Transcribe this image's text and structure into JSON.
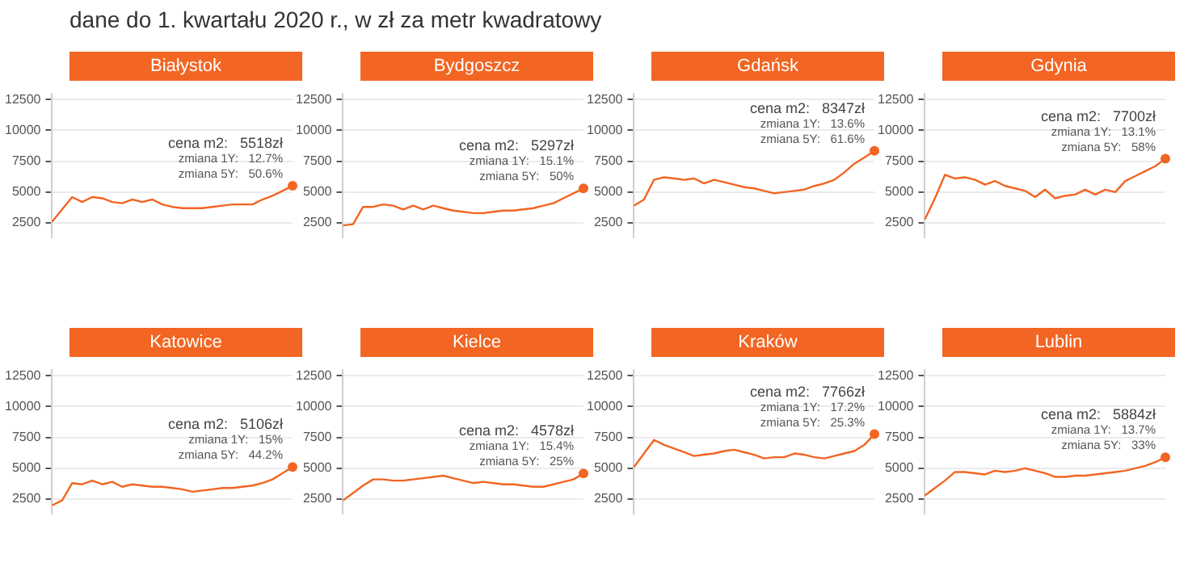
{
  "chart_data": [
    {
      "type": "line",
      "title": "Białystok",
      "subtitle": "dane do 1. kwartału 2020 r., w zł za metr kwadratowy",
      "categories": [
        null,
        null,
        null,
        null,
        null,
        null,
        null,
        null,
        null,
        null,
        null,
        null,
        null,
        null,
        null,
        null,
        null,
        null,
        null,
        null,
        null,
        null,
        null,
        null,
        null
      ],
      "ylim": [
        1300,
        13000
      ],
      "yticks": [
        2500,
        5000,
        7500,
        10000,
        12500
      ],
      "grid": "y",
      "series": [
        {
          "type": "line",
          "color": "#f26522",
          "values": [
            2600,
            3600,
            4600,
            4200,
            4600,
            4500,
            4200,
            4100,
            4400,
            4200,
            4400,
            4000,
            3800,
            3700,
            3700,
            3700,
            3800,
            3900,
            4000,
            4000,
            4000,
            4400,
            4700,
            5100,
            5518
          ]
        }
      ],
      "annotations": [
        "cena m2:   5518zł",
        "zmiana 1Y:   12.7%",
        "zmiana 5Y:   50.6%"
      ]
    },
    {
      "type": "line",
      "title": "Bydgoszcz",
      "categories": [
        null,
        null,
        null,
        null,
        null,
        null,
        null,
        null,
        null,
        null,
        null,
        null,
        null,
        null,
        null,
        null,
        null,
        null,
        null,
        null,
        null,
        null,
        null,
        null,
        null
      ],
      "ylim": [
        1300,
        13000
      ],
      "yticks": [
        2500,
        5000,
        7500,
        10000,
        12500
      ],
      "grid": "y",
      "series": [
        {
          "type": "line",
          "color": "#f26522",
          "values": [
            2300,
            2400,
            3800,
            3800,
            4000,
            3900,
            3600,
            3900,
            3600,
            3900,
            3700,
            3500,
            3400,
            3300,
            3300,
            3400,
            3500,
            3500,
            3600,
            3700,
            3900,
            4100,
            4500,
            4900,
            5297
          ]
        }
      ],
      "annotations": [
        "cena m2:   5297zł",
        "zmiana 1Y:   15.1%",
        "zmiana 5Y:   50%"
      ]
    },
    {
      "type": "line",
      "title": "Gdańsk",
      "categories": [
        null,
        null,
        null,
        null,
        null,
        null,
        null,
        null,
        null,
        null,
        null,
        null,
        null,
        null,
        null,
        null,
        null,
        null,
        null,
        null,
        null,
        null,
        null,
        null,
        null
      ],
      "ylim": [
        1300,
        13000
      ],
      "yticks": [
        2500,
        5000,
        7500,
        10000,
        12500
      ],
      "grid": "y",
      "series": [
        {
          "type": "line",
          "color": "#f26522",
          "values": [
            3900,
            4400,
            6000,
            6200,
            6100,
            6000,
            6100,
            5700,
            6000,
            5800,
            5600,
            5400,
            5300,
            5100,
            4900,
            5000,
            5100,
            5200,
            5500,
            5700,
            6000,
            6600,
            7300,
            7800,
            8347
          ]
        }
      ],
      "annotations": [
        "cena m2:   8347zł",
        "zmiana 1Y:   13.6%",
        "zmiana 5Y:   61.6%"
      ]
    },
    {
      "type": "line",
      "title": "Gdynia",
      "categories": [
        null,
        null,
        null,
        null,
        null,
        null,
        null,
        null,
        null,
        null,
        null,
        null,
        null,
        null,
        null,
        null,
        null,
        null,
        null,
        null,
        null,
        null,
        null,
        null,
        null
      ],
      "ylim": [
        1300,
        13000
      ],
      "yticks": [
        2500,
        5000,
        7500,
        10000,
        12500
      ],
      "grid": "y",
      "series": [
        {
          "type": "line",
          "color": "#f26522",
          "values": [
            2800,
            4500,
            6400,
            6100,
            6200,
            6000,
            5600,
            5900,
            5500,
            5300,
            5100,
            4600,
            5200,
            4500,
            4700,
            4800,
            5200,
            4800,
            5200,
            5000,
            5900,
            6300,
            6700,
            7100,
            7700
          ]
        }
      ],
      "annotations": [
        "cena m2:   7700zł",
        "zmiana 1Y:   13.1%",
        "zmiana 5Y:   58%"
      ]
    },
    {
      "type": "line",
      "title": "Katowice",
      "categories": [
        null,
        null,
        null,
        null,
        null,
        null,
        null,
        null,
        null,
        null,
        null,
        null,
        null,
        null,
        null,
        null,
        null,
        null,
        null,
        null,
        null,
        null,
        null,
        null,
        null
      ],
      "ylim": [
        1300,
        13000
      ],
      "yticks": [
        2500,
        5000,
        7500,
        10000,
        12500
      ],
      "grid": "y",
      "series": [
        {
          "type": "line",
          "color": "#f26522",
          "values": [
            2000,
            2400,
            3800,
            3700,
            4000,
            3700,
            3900,
            3500,
            3700,
            3600,
            3500,
            3500,
            3400,
            3300,
            3100,
            3200,
            3300,
            3400,
            3400,
            3500,
            3600,
            3800,
            4100,
            4600,
            5106
          ]
        }
      ],
      "annotations": [
        "cena m2:   5106zł",
        "zmiana 1Y:   15%",
        "zmiana 5Y:   44.2%"
      ]
    },
    {
      "type": "line",
      "title": "Kielce",
      "categories": [
        null,
        null,
        null,
        null,
        null,
        null,
        null,
        null,
        null,
        null,
        null,
        null,
        null,
        null,
        null,
        null,
        null,
        null,
        null,
        null,
        null,
        null,
        null,
        null,
        null
      ],
      "ylim": [
        1300,
        13000
      ],
      "yticks": [
        2500,
        5000,
        7500,
        10000,
        12500
      ],
      "grid": "y",
      "series": [
        {
          "type": "line",
          "color": "#f26522",
          "values": [
            2400,
            3000,
            3600,
            4100,
            4100,
            4000,
            4000,
            4100,
            4200,
            4300,
            4400,
            4200,
            4000,
            3800,
            3900,
            3800,
            3700,
            3700,
            3600,
            3500,
            3500,
            3700,
            3900,
            4100,
            4578
          ]
        }
      ],
      "annotations": [
        "cena m2:   4578zł",
        "zmiana 1Y:   15.4%",
        "zmiana 5Y:   25%"
      ]
    },
    {
      "type": "line",
      "title": "Kraków",
      "categories": [
        null,
        null,
        null,
        null,
        null,
        null,
        null,
        null,
        null,
        null,
        null,
        null,
        null,
        null,
        null,
        null,
        null,
        null,
        null,
        null,
        null,
        null,
        null,
        null,
        null
      ],
      "ylim": [
        1300,
        13000
      ],
      "yticks": [
        2500,
        5000,
        7500,
        10000,
        12500
      ],
      "grid": "y",
      "series": [
        {
          "type": "line",
          "color": "#f26522",
          "values": [
            5100,
            6200,
            7300,
            6900,
            6600,
            6300,
            6000,
            6100,
            6200,
            6400,
            6500,
            6300,
            6100,
            5800,
            5900,
            5900,
            6200,
            6100,
            5900,
            5800,
            6000,
            6200,
            6400,
            6900,
            7766
          ]
        }
      ],
      "annotations": [
        "cena m2:   7766zł",
        "zmiana 1Y:   17.2%",
        "zmiana 5Y:   25.3%"
      ]
    },
    {
      "type": "line",
      "title": "Lublin",
      "categories": [
        null,
        null,
        null,
        null,
        null,
        null,
        null,
        null,
        null,
        null,
        null,
        null,
        null,
        null,
        null,
        null,
        null,
        null,
        null,
        null,
        null,
        null,
        null,
        null,
        null
      ],
      "ylim": [
        1300,
        13000
      ],
      "yticks": [
        2500,
        5000,
        7500,
        10000,
        12500
      ],
      "grid": "y",
      "series": [
        {
          "type": "line",
          "color": "#f26522",
          "values": [
            2800,
            3400,
            4000,
            4700,
            4700,
            4600,
            4500,
            4800,
            4700,
            4800,
            5000,
            4800,
            4600,
            4300,
            4300,
            4400,
            4400,
            4500,
            4600,
            4700,
            4800,
            5000,
            5200,
            5500,
            5884
          ]
        }
      ],
      "annotations": [
        "cena m2:   5884zł",
        "zmiana 1Y:   13.7%",
        "zmiana 5Y:   33%"
      ]
    }
  ]
}
